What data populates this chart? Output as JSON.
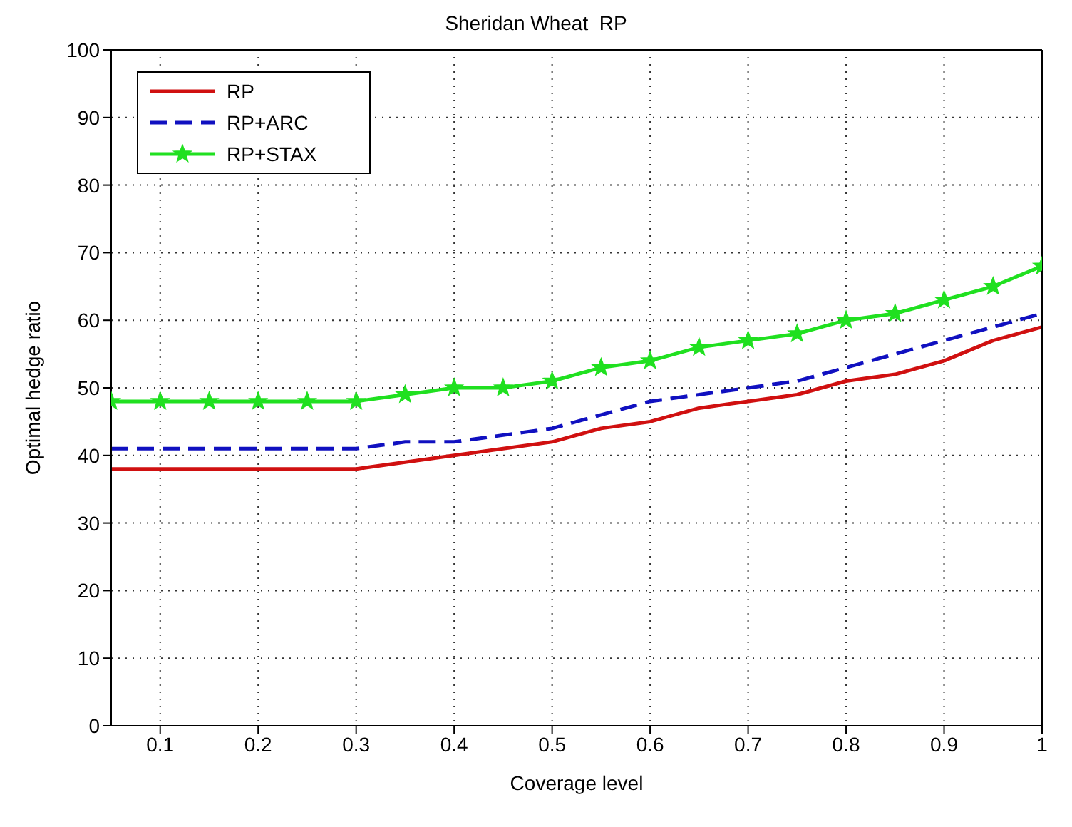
{
  "chart_data": {
    "type": "line",
    "title": "Sheridan Wheat  RP",
    "xlabel": "Coverage level",
    "ylabel": "Optimal hedge ratio",
    "x": [
      0.05,
      0.1,
      0.15,
      0.2,
      0.25,
      0.3,
      0.35,
      0.4,
      0.45,
      0.5,
      0.55,
      0.6,
      0.65,
      0.7,
      0.75,
      0.8,
      0.85,
      0.9,
      0.95,
      1
    ],
    "series": [
      {
        "name": "RP",
        "color": "#d01010",
        "line_style": "solid",
        "marker": "none",
        "values": [
          38,
          38,
          38,
          38,
          38,
          38,
          39,
          40,
          41,
          42,
          44,
          45,
          47,
          48,
          49,
          51,
          52,
          54,
          57,
          59
        ]
      },
      {
        "name": "RP+ARC",
        "color": "#1010c0",
        "line_style": "dashed",
        "marker": "none",
        "values": [
          41,
          41,
          41,
          41,
          41,
          41,
          42,
          42,
          43,
          44,
          46,
          48,
          49,
          50,
          51,
          53,
          55,
          57,
          59,
          61
        ]
      },
      {
        "name": "RP+STAX",
        "color": "#20e020",
        "line_style": "solid",
        "marker": "star",
        "values": [
          48,
          48,
          48,
          48,
          48,
          48,
          49,
          50,
          50,
          51,
          53,
          54,
          56,
          57,
          58,
          60,
          61,
          63,
          65,
          68
        ]
      }
    ],
    "xlim": [
      0.05,
      1
    ],
    "xticks": [
      0.1,
      0.2,
      0.3,
      0.4,
      0.5,
      0.6,
      0.7,
      0.8,
      0.9,
      1
    ],
    "ylim": [
      0,
      100
    ],
    "yticks": [
      0,
      10,
      20,
      30,
      40,
      50,
      60,
      70,
      80,
      90,
      100
    ],
    "grid": true,
    "legend": "top left"
  }
}
